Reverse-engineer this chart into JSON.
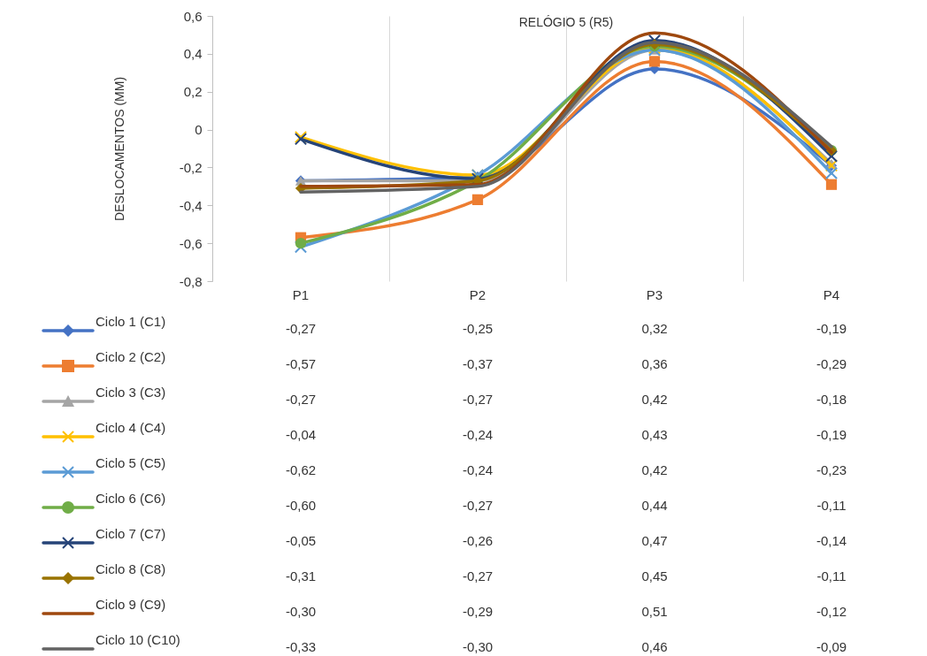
{
  "chart_data": {
    "type": "line",
    "title": "RELÓGIO 5 (R5)",
    "ylabel": "DESLOCAMENTOS (MM)",
    "categories": [
      "P1",
      "P2",
      "P3",
      "P4"
    ],
    "ylim": [
      -0.8,
      0.6
    ],
    "yticks": [
      {
        "value": -0.8,
        "label": "-0,8"
      },
      {
        "value": -0.6,
        "label": "-0,6"
      },
      {
        "value": -0.4,
        "label": "-0,4"
      },
      {
        "value": -0.2,
        "label": "-0,2"
      },
      0,
      {
        "value": 0.2,
        "label": "0,2"
      },
      {
        "value": 0.4,
        "label": "0,4"
      },
      {
        "value": 0.6,
        "label": "0,6"
      }
    ],
    "grid": "x",
    "legend": "bottom",
    "data_labels": true,
    "series": [
      {
        "name": "Ciclo 1 (C1)",
        "color": "#4472c4",
        "marker": "diamond",
        "values": [
          -0.27,
          -0.25,
          0.32,
          -0.19
        ],
        "value_labels": [
          "-0,27",
          "-0,25",
          "0,32",
          "-0,19"
        ]
      },
      {
        "name": "Ciclo 2 (C2)",
        "color": "#ed7d31",
        "marker": "square",
        "values": [
          -0.57,
          -0.37,
          0.36,
          -0.29
        ],
        "value_labels": [
          "-0,57",
          "-0,37",
          "0,36",
          "-0,29"
        ]
      },
      {
        "name": "Ciclo 3 (C3)",
        "color": "#a5a5a5",
        "marker": "triangle",
        "values": [
          -0.27,
          -0.27,
          0.42,
          -0.18
        ],
        "value_labels": [
          "-0,27",
          "-0,27",
          "0,42",
          "-0,18"
        ]
      },
      {
        "name": "Ciclo 4 (C4)",
        "color": "#ffc000",
        "marker": "cross",
        "values": [
          -0.04,
          -0.24,
          0.43,
          -0.19
        ],
        "value_labels": [
          "-0,04",
          "-0,24",
          "0,43",
          "-0,19"
        ]
      },
      {
        "name": "Ciclo 5 (C5)",
        "color": "#5b9bd5",
        "marker": "cross",
        "values": [
          -0.62,
          -0.24,
          0.42,
          -0.23
        ],
        "value_labels": [
          "-0,62",
          "-0,24",
          "0,42",
          "-0,23"
        ]
      },
      {
        "name": "Ciclo 6 (C6)",
        "color": "#70ad47",
        "marker": "circle",
        "values": [
          -0.6,
          -0.27,
          0.44,
          -0.11
        ],
        "value_labels": [
          "-0,60",
          "-0,27",
          "0,44",
          "-0,11"
        ]
      },
      {
        "name": "Ciclo 7 (C7)",
        "color": "#264478",
        "marker": "cross",
        "values": [
          -0.05,
          -0.26,
          0.47,
          -0.14
        ],
        "value_labels": [
          "-0,05",
          "-0,26",
          "0,47",
          "-0,14"
        ]
      },
      {
        "name": "Ciclo 8 (C8)",
        "color": "#997300",
        "marker": "diamond",
        "values": [
          -0.31,
          -0.27,
          0.45,
          -0.11
        ],
        "value_labels": [
          "-0,31",
          "-0,27",
          "0,45",
          "-0,11"
        ]
      },
      {
        "name": "Ciclo 9 (C9)",
        "color": "#9e480e",
        "marker": "none",
        "values": [
          -0.3,
          -0.29,
          0.51,
          -0.12
        ],
        "value_labels": [
          "-0,30",
          "-0,29",
          "0,51",
          "-0,12"
        ]
      },
      {
        "name": "Ciclo 10 (C10)",
        "color": "#636363",
        "marker": "none",
        "values": [
          -0.33,
          -0.3,
          0.46,
          -0.09
        ],
        "value_labels": [
          "-0,33",
          "-0,30",
          "0,46",
          "-0,09"
        ]
      }
    ]
  }
}
